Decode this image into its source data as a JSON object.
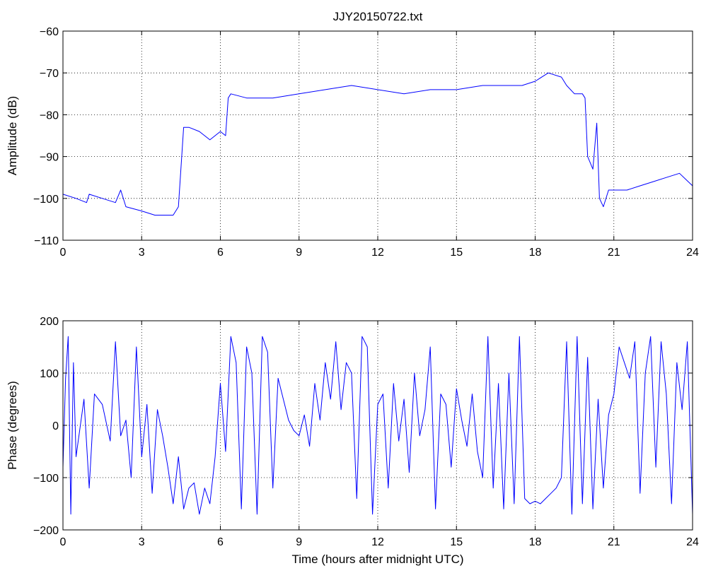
{
  "title": "JJY20150722.txt",
  "colors": {
    "series": "#0000ff",
    "axes": "#000000",
    "background": "#ffffff"
  },
  "chart_data": [
    {
      "type": "line",
      "title": "JJY20150722.txt",
      "xlabel": "",
      "ylabel": "Amplitude (dB)",
      "xlim": [
        0,
        24
      ],
      "ylim": [
        -110,
        -60
      ],
      "xticks": [
        "0",
        "3",
        "6",
        "9",
        "12",
        "15",
        "18",
        "21",
        "24"
      ],
      "yticks": [
        "-110",
        "-100",
        "-90",
        "-80",
        "-70",
        "-60"
      ],
      "grid": true,
      "x": [
        0,
        0.5,
        0.9,
        1.0,
        1.5,
        2.0,
        2.2,
        2.4,
        3.0,
        3.5,
        4.2,
        4.4,
        4.6,
        4.8,
        5.2,
        5.6,
        6.0,
        6.2,
        6.3,
        6.4,
        7.0,
        8.0,
        9.0,
        10.0,
        11.0,
        12.0,
        13.0,
        14.0,
        15.0,
        16.0,
        17.0,
        17.5,
        18.0,
        18.5,
        19.0,
        19.2,
        19.5,
        19.8,
        19.9,
        20.0,
        20.2,
        20.35,
        20.45,
        20.6,
        20.8,
        21.0,
        21.5,
        22.0,
        22.5,
        23.0,
        23.5,
        24.0
      ],
      "y": [
        -99,
        -100,
        -101,
        -99,
        -100,
        -101,
        -98,
        -102,
        -103,
        -104,
        -104,
        -102,
        -83,
        -83,
        -84,
        -86,
        -84,
        -85,
        -76,
        -75,
        -76,
        -76,
        -75,
        -74,
        -73,
        -74,
        -75,
        -74,
        -74,
        -73,
        -73,
        -73,
        -72,
        -70,
        -71,
        -73,
        -75,
        -75,
        -76,
        -90,
        -93,
        -82,
        -100,
        -102,
        -98,
        -98,
        -98,
        -97,
        -96,
        -95,
        -94,
        -97
      ]
    },
    {
      "type": "line",
      "title": "",
      "xlabel": "Time (hours after midnight UTC)",
      "ylabel": "Phase (degrees)",
      "xlim": [
        0,
        24
      ],
      "ylim": [
        -200,
        200
      ],
      "xticks": [
        "0",
        "3",
        "6",
        "9",
        "12",
        "15",
        "18",
        "21",
        "24"
      ],
      "yticks": [
        "-200",
        "-100",
        "0",
        "100",
        "200"
      ],
      "grid": true,
      "x": [
        0,
        0.1,
        0.2,
        0.3,
        0.4,
        0.5,
        0.8,
        1.0,
        1.2,
        1.5,
        1.8,
        2.0,
        2.2,
        2.4,
        2.6,
        2.8,
        3.0,
        3.2,
        3.4,
        3.6,
        3.8,
        4.0,
        4.2,
        4.4,
        4.6,
        4.8,
        5.0,
        5.2,
        5.4,
        5.6,
        5.8,
        6.0,
        6.2,
        6.4,
        6.6,
        6.8,
        7.0,
        7.2,
        7.4,
        7.6,
        7.8,
        8.0,
        8.2,
        8.4,
        8.6,
        8.8,
        9.0,
        9.2,
        9.4,
        9.6,
        9.8,
        10.0,
        10.2,
        10.4,
        10.6,
        10.8,
        11.0,
        11.2,
        11.4,
        11.6,
        11.8,
        12.0,
        12.2,
        12.4,
        12.6,
        12.8,
        13.0,
        13.2,
        13.4,
        13.6,
        13.8,
        14.0,
        14.2,
        14.4,
        14.6,
        14.8,
        15.0,
        15.2,
        15.4,
        15.6,
        15.8,
        16.0,
        16.2,
        16.4,
        16.6,
        16.8,
        17.0,
        17.2,
        17.4,
        17.6,
        17.8,
        18.0,
        18.2,
        18.4,
        18.6,
        18.8,
        19.0,
        19.2,
        19.4,
        19.6,
        19.8,
        20.0,
        20.2,
        20.4,
        20.6,
        20.8,
        21.0,
        21.2,
        21.4,
        21.6,
        21.8,
        22.0,
        22.2,
        22.4,
        22.6,
        22.8,
        23.0,
        23.2,
        23.4,
        23.6,
        23.8,
        24.0
      ],
      "y": [
        -80,
        90,
        170,
        -170,
        120,
        -60,
        50,
        -120,
        60,
        40,
        -30,
        160,
        -20,
        10,
        -100,
        150,
        -60,
        40,
        -130,
        30,
        -20,
        -80,
        -150,
        -60,
        -160,
        -120,
        -110,
        -170,
        -120,
        -150,
        -60,
        80,
        -50,
        170,
        120,
        -160,
        150,
        100,
        -170,
        170,
        140,
        -120,
        90,
        50,
        10,
        -10,
        -20,
        20,
        -40,
        80,
        10,
        120,
        50,
        160,
        30,
        120,
        100,
        -140,
        170,
        150,
        -170,
        40,
        60,
        -120,
        80,
        -30,
        50,
        -90,
        100,
        -20,
        30,
        150,
        -160,
        60,
        40,
        -80,
        70,
        10,
        -40,
        60,
        -50,
        -100,
        170,
        -120,
        80,
        -160,
        100,
        -150,
        170,
        -140,
        -150,
        -145,
        -150,
        -140,
        -130,
        -120,
        -100,
        160,
        -170,
        170,
        -150,
        130,
        -160,
        50,
        -120,
        20,
        60,
        150,
        120,
        90,
        160,
        -130,
        100,
        170,
        -80,
        160,
        60,
        -150,
        120,
        30,
        160,
        -170
      ]
    }
  ]
}
